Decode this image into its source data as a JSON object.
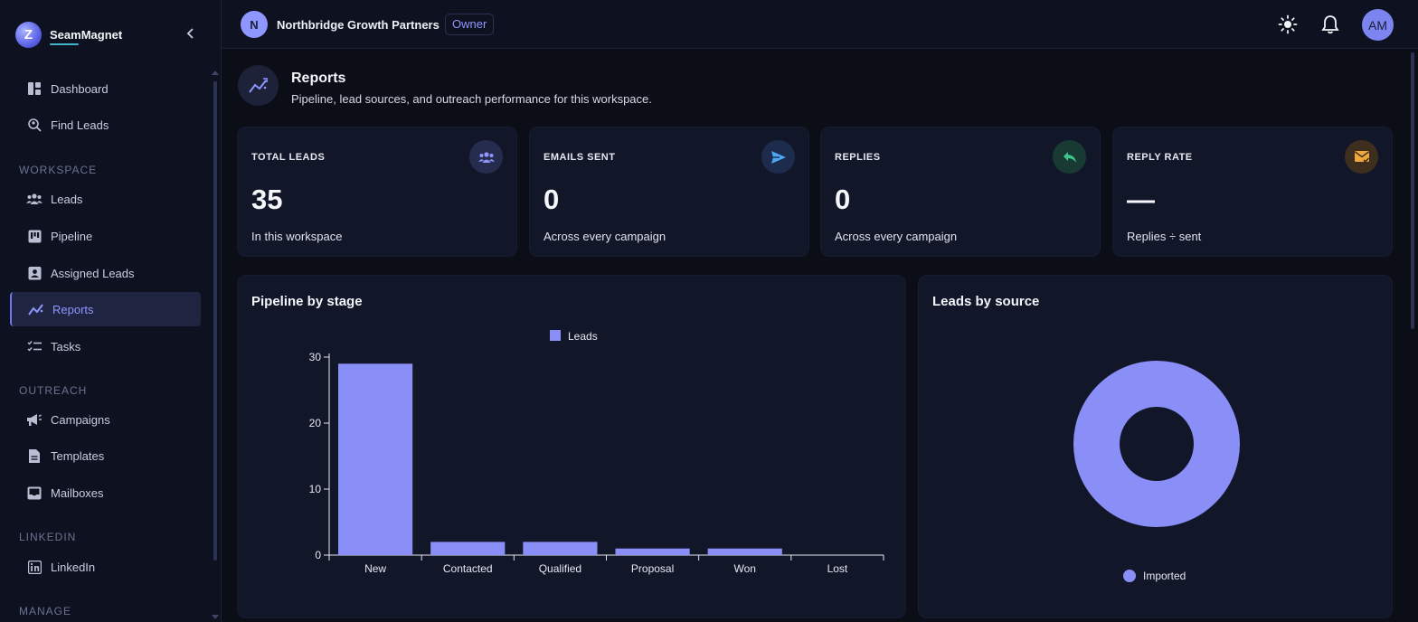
{
  "brand": {
    "name": "SeamMagnet",
    "logo_letter": "Z"
  },
  "sidebar": {
    "top_items": [
      {
        "label": "Dashboard",
        "icon": "dashboard-icon"
      },
      {
        "label": "Find Leads",
        "icon": "find-leads-icon"
      }
    ],
    "sections": [
      {
        "title": "WORKSPACE"
      },
      {
        "title": "OUTREACH"
      },
      {
        "title": "LINKEDIN"
      },
      {
        "title": "MANAGE"
      }
    ],
    "workspace_items": [
      {
        "label": "Leads",
        "icon": "people-icon"
      },
      {
        "label": "Pipeline",
        "icon": "kanban-icon"
      },
      {
        "label": "Assigned Leads",
        "icon": "badge-icon"
      },
      {
        "label": "Reports",
        "icon": "reports-icon",
        "active": true
      },
      {
        "label": "Tasks",
        "icon": "checklist-icon"
      }
    ],
    "outreach_items": [
      {
        "label": "Campaigns",
        "icon": "megaphone-icon"
      },
      {
        "label": "Templates",
        "icon": "document-icon"
      },
      {
        "label": "Mailboxes",
        "icon": "inbox-icon"
      }
    ],
    "linkedin_items": [
      {
        "label": "LinkedIn",
        "icon": "linkedin-icon"
      }
    ]
  },
  "topbar": {
    "workspace_initial": "N",
    "workspace_name": "Northbridge Growth Partners",
    "role": "Owner",
    "user_initials": "AM"
  },
  "page": {
    "title": "Reports",
    "subtitle": "Pipeline, lead sources, and outreach performance for this workspace."
  },
  "stats": [
    {
      "label": "TOTAL LEADS",
      "value": "35",
      "sub": "In this workspace",
      "icon": "people-icon",
      "icon_color": "#8e96ff",
      "icon_bg": "#262c4d"
    },
    {
      "label": "EMAILS SENT",
      "value": "0",
      "sub": "Across every campaign",
      "icon": "send-icon",
      "icon_color": "#4aa8f0",
      "icon_bg": "#1d2c4d"
    },
    {
      "label": "REPLIES",
      "value": "0",
      "sub": "Across every campaign",
      "icon": "reply-icon",
      "icon_color": "#3fc48a",
      "icon_bg": "#183a33"
    },
    {
      "label": "REPLY RATE",
      "value": "—",
      "sub": "Replies ÷ sent",
      "icon": "mail-check-icon",
      "icon_color": "#f0a83c",
      "icon_bg": "#3d2e1d"
    }
  ],
  "panels": {
    "pipeline_title": "Pipeline by stage",
    "source_title": "Leads by source"
  },
  "colors": {
    "accent": "#8e96ff",
    "bar": "#8a8ff7"
  },
  "chart_data": [
    {
      "type": "bar",
      "categories": [
        "New",
        "Contacted",
        "Qualified",
        "Proposal",
        "Won",
        "Lost"
      ],
      "series": [
        {
          "name": "Leads",
          "values": [
            29,
            2,
            2,
            1,
            1,
            0
          ]
        }
      ],
      "ylim": [
        0,
        30
      ],
      "yticks": [
        0,
        10,
        20,
        30
      ],
      "legend": "top"
    },
    {
      "type": "pie",
      "labels": [
        "Imported"
      ],
      "values": [
        35
      ],
      "donut": true,
      "legend": "bottom"
    }
  ]
}
